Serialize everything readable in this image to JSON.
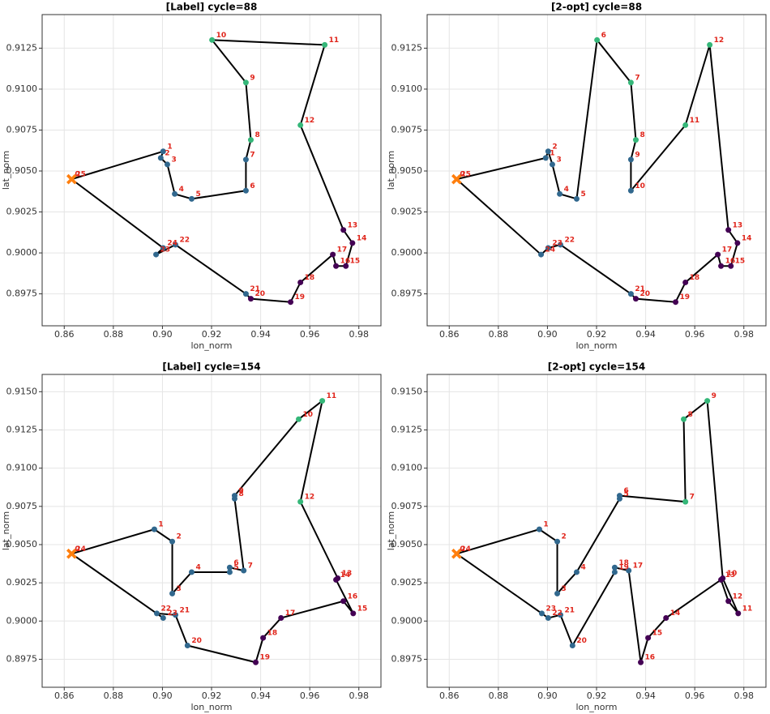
{
  "chart_data": [
    {
      "type": "route",
      "title": "[Label] cycle=88",
      "xlabel": "lon_norm",
      "ylabel": "lat_norm",
      "x": [
        0.863,
        0.9003,
        0.8993,
        0.902,
        0.905,
        0.9119,
        0.934,
        0.934,
        0.936,
        0.934,
        0.9202,
        0.9661,
        0.9562,
        0.9737,
        0.9774,
        0.9747,
        0.9707,
        0.9694,
        0.9562,
        0.9522,
        0.936,
        0.934,
        0.9053,
        0.8974,
        0.9003,
        0.863
      ],
      "y": [
        0.9045,
        0.9062,
        0.9058,
        0.9054,
        0.9036,
        0.9033,
        0.9038,
        0.9057,
        0.9069,
        0.9104,
        0.913,
        0.9127,
        0.9078,
        0.9014,
        0.9006,
        0.8992,
        0.8992,
        0.8999,
        0.8982,
        0.897,
        0.8972,
        0.8975,
        0.9005,
        0.8999,
        0.9003,
        0.9045
      ],
      "labels": [
        0,
        1,
        2,
        3,
        4,
        5,
        6,
        7,
        8,
        9,
        10,
        11,
        12,
        13,
        14,
        15,
        16,
        17,
        18,
        19,
        20,
        21,
        22,
        23,
        24,
        25
      ],
      "point_colors": [
        "#ff7f0e",
        "#31688e",
        "#31688e",
        "#31688e",
        "#31688e",
        "#31688e",
        "#31688e",
        "#31688e",
        "#35b779",
        "#35b779",
        "#35b779",
        "#35b779",
        "#35b779",
        "#440154",
        "#440154",
        "#440154",
        "#440154",
        "#440154",
        "#440154",
        "#440154",
        "#440154",
        "#31688e",
        "#31688e",
        "#31688e",
        "#31688e",
        "#ff7f0e"
      ],
      "line_color": "#000000",
      "grid": true,
      "xlim": [
        0.851,
        0.989
      ],
      "ylim": [
        0.89555,
        0.91455
      ],
      "xticks": [
        0.86,
        0.88,
        {
          "value": 0.9,
          "label": "0.90"
        },
        0.92,
        0.94,
        0.96,
        0.98
      ],
      "yticks": [
        0.8975,
        {
          "value": 0.9,
          "label": "0.9000"
        },
        0.9025,
        {
          "value": 0.905,
          "label": "0.9050"
        },
        0.9075,
        {
          "value": 0.91,
          "label": "0.9100"
        },
        0.9125
      ]
    },
    {
      "type": "route",
      "title": "[2-opt] cycle=88",
      "xlabel": "lon_norm",
      "ylabel": "lat_norm",
      "x": [
        0.863,
        0.8993,
        0.9003,
        0.902,
        0.905,
        0.9119,
        0.9202,
        0.934,
        0.936,
        0.934,
        0.934,
        0.9562,
        0.9661,
        0.9737,
        0.9774,
        0.9747,
        0.9707,
        0.9694,
        0.9562,
        0.9522,
        0.936,
        0.934,
        0.9053,
        0.9003,
        0.8974,
        0.863
      ],
      "y": [
        0.9045,
        0.9058,
        0.9062,
        0.9054,
        0.9036,
        0.9033,
        0.913,
        0.9104,
        0.9069,
        0.9057,
        0.9038,
        0.9078,
        0.9127,
        0.9014,
        0.9006,
        0.8992,
        0.8992,
        0.8999,
        0.8982,
        0.897,
        0.8972,
        0.8975,
        0.9005,
        0.9003,
        0.8999,
        0.9045
      ],
      "labels": [
        0,
        1,
        2,
        3,
        4,
        5,
        6,
        7,
        8,
        9,
        10,
        11,
        12,
        13,
        14,
        15,
        16,
        17,
        18,
        19,
        20,
        21,
        22,
        23,
        24,
        25
      ],
      "point_colors": [
        "#ff7f0e",
        "#31688e",
        "#31688e",
        "#31688e",
        "#31688e",
        "#31688e",
        "#35b779",
        "#35b779",
        "#35b779",
        "#31688e",
        "#31688e",
        "#35b779",
        "#35b779",
        "#440154",
        "#440154",
        "#440154",
        "#440154",
        "#440154",
        "#440154",
        "#440154",
        "#440154",
        "#31688e",
        "#31688e",
        "#31688e",
        "#31688e",
        "#ff7f0e"
      ],
      "line_color": "#000000",
      "grid": true,
      "xlim": [
        0.851,
        0.989
      ],
      "ylim": [
        0.89555,
        0.91455
      ],
      "xticks": [
        0.86,
        0.88,
        {
          "value": 0.9,
          "label": "0.90"
        },
        0.92,
        0.94,
        0.96,
        0.98
      ],
      "yticks": [
        0.8975,
        {
          "value": 0.9,
          "label": "0.9000"
        },
        0.9025,
        {
          "value": 0.905,
          "label": "0.9050"
        },
        0.9075,
        {
          "value": 0.91,
          "label": "0.9100"
        },
        0.9125
      ]
    },
    {
      "type": "route",
      "title": "[Label] cycle=154",
      "xlabel": "lon_norm",
      "ylabel": "lat_norm",
      "x": [
        0.863,
        0.8967,
        0.904,
        0.904,
        0.9119,
        0.9274,
        0.9274,
        0.9331,
        0.9294,
        0.9294,
        0.9555,
        0.9651,
        0.9562,
        0.9714,
        0.9707,
        0.9777,
        0.9737,
        0.9483,
        0.941,
        0.938,
        0.9102,
        0.9053,
        0.8977,
        0.9003,
        0.863
      ],
      "y": [
        0.9044,
        0.906,
        0.9052,
        0.9018,
        0.9032,
        0.9032,
        0.9035,
        0.9033,
        0.908,
        0.9082,
        0.9132,
        0.9144,
        0.9078,
        0.9028,
        0.9027,
        0.9005,
        0.9013,
        0.9002,
        0.8989,
        0.8973,
        0.8984,
        0.9004,
        0.9005,
        0.9002,
        0.9044
      ],
      "labels": [
        0,
        1,
        2,
        3,
        4,
        5,
        6,
        7,
        8,
        9,
        10,
        11,
        12,
        13,
        14,
        15,
        16,
        17,
        18,
        19,
        20,
        21,
        22,
        23,
        24
      ],
      "point_colors": [
        "#ff7f0e",
        "#31688e",
        "#31688e",
        "#31688e",
        "#31688e",
        "#31688e",
        "#31688e",
        "#31688e",
        "#31688e",
        "#31688e",
        "#35b779",
        "#35b779",
        "#35b779",
        "#440154",
        "#440154",
        "#440154",
        "#440154",
        "#440154",
        "#440154",
        "#440154",
        "#31688e",
        "#31688e",
        "#31688e",
        "#31688e",
        "#ff7f0e"
      ],
      "line_color": "#000000",
      "grid": true,
      "xlim": [
        0.851,
        0.989
      ],
      "ylim": [
        0.89567,
        0.91613
      ],
      "xticks": [
        0.86,
        0.88,
        {
          "value": 0.9,
          "label": "0.90"
        },
        0.92,
        0.94,
        0.96,
        0.98
      ],
      "yticks": [
        0.8975,
        {
          "value": 0.9,
          "label": "0.9000"
        },
        0.9025,
        {
          "value": 0.905,
          "label": "0.9050"
        },
        0.9075,
        {
          "value": 0.91,
          "label": "0.9100"
        },
        0.9125,
        {
          "value": 0.915,
          "label": "0.9150"
        }
      ]
    },
    {
      "type": "route",
      "title": "[2-opt] cycle=154",
      "xlabel": "lon_norm",
      "ylabel": "lat_norm",
      "x": [
        0.863,
        0.8967,
        0.904,
        0.904,
        0.9119,
        0.9294,
        0.9294,
        0.9562,
        0.9555,
        0.9651,
        0.9714,
        0.9777,
        0.9737,
        0.9707,
        0.9483,
        0.941,
        0.938,
        0.9331,
        0.9274,
        0.9274,
        0.9102,
        0.9053,
        0.9003,
        0.8977,
        0.863
      ],
      "y": [
        0.9044,
        0.906,
        0.9052,
        0.9018,
        0.9032,
        0.908,
        0.9082,
        0.9078,
        0.9132,
        0.9144,
        0.9028,
        0.9005,
        0.9013,
        0.9027,
        0.9002,
        0.8989,
        0.8973,
        0.9033,
        0.9035,
        0.9032,
        0.8984,
        0.9004,
        0.9002,
        0.9005,
        0.9044
      ],
      "labels": [
        0,
        1,
        2,
        3,
        4,
        5,
        6,
        7,
        8,
        9,
        10,
        11,
        12,
        13,
        14,
        15,
        16,
        17,
        18,
        19,
        20,
        21,
        22,
        23,
        24
      ],
      "point_colors": [
        "#ff7f0e",
        "#31688e",
        "#31688e",
        "#31688e",
        "#31688e",
        "#31688e",
        "#31688e",
        "#35b779",
        "#35b779",
        "#35b779",
        "#440154",
        "#440154",
        "#440154",
        "#440154",
        "#440154",
        "#440154",
        "#440154",
        "#31688e",
        "#31688e",
        "#31688e",
        "#31688e",
        "#31688e",
        "#31688e",
        "#31688e",
        "#ff7f0e"
      ],
      "line_color": "#000000",
      "grid": true,
      "xlim": [
        0.851,
        0.989
      ],
      "ylim": [
        0.89567,
        0.91613
      ],
      "xticks": [
        0.86,
        0.88,
        {
          "value": 0.9,
          "label": "0.90"
        },
        0.92,
        0.94,
        0.96,
        0.98
      ],
      "yticks": [
        0.8975,
        {
          "value": 0.9,
          "label": "0.9000"
        },
        0.9025,
        {
          "value": 0.905,
          "label": "0.9050"
        },
        0.9075,
        {
          "value": 0.91,
          "label": "0.9100"
        },
        0.9125,
        {
          "value": 0.915,
          "label": "0.9150"
        }
      ]
    }
  ]
}
